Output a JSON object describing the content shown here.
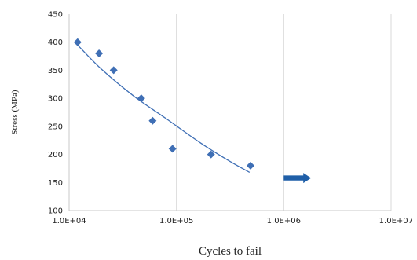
{
  "chart_data": {
    "type": "scatter",
    "x_scale": "log",
    "y_scale": "linear",
    "xlim": [
      10000,
      10000000
    ],
    "ylim": [
      100,
      450
    ],
    "xlabel": "Cycles to fail",
    "ylabel": "Stress (MPa)",
    "x_ticks": [
      "1.0E+04",
      "1.0E+05",
      "1.0E+06",
      "1.0E+07"
    ],
    "x_tick_values": [
      10000,
      100000,
      1000000,
      10000000
    ],
    "y_ticks": [
      "450",
      "400",
      "350",
      "300",
      "250",
      "200",
      "150",
      "100"
    ],
    "y_tick_values": [
      450,
      400,
      350,
      300,
      250,
      200,
      150,
      100
    ],
    "grid": "vertical",
    "series": [
      {
        "color": "#3f6fb5",
        "marker": "diamond",
        "x": [
          12000,
          19000,
          26000,
          47000,
          60000,
          92000,
          210000,
          490000
        ],
        "y": [
          400,
          380,
          350,
          300,
          260,
          210,
          200,
          180
        ]
      }
    ],
    "trendline": {
      "color": "#3f6fb5",
      "x": [
        12000,
        20000,
        40000,
        80000,
        160000,
        300000,
        480000
      ],
      "y": [
        395,
        352,
        304,
        264,
        223,
        190,
        168
      ]
    },
    "annotation": {
      "type": "arrow",
      "direction": "right",
      "color": "#1f5fa8",
      "x": [
        1000000,
        1800000
      ],
      "y": 158
    },
    "colors": {
      "axis": "#c8c8c8",
      "grid": "#d9d9d9"
    }
  }
}
